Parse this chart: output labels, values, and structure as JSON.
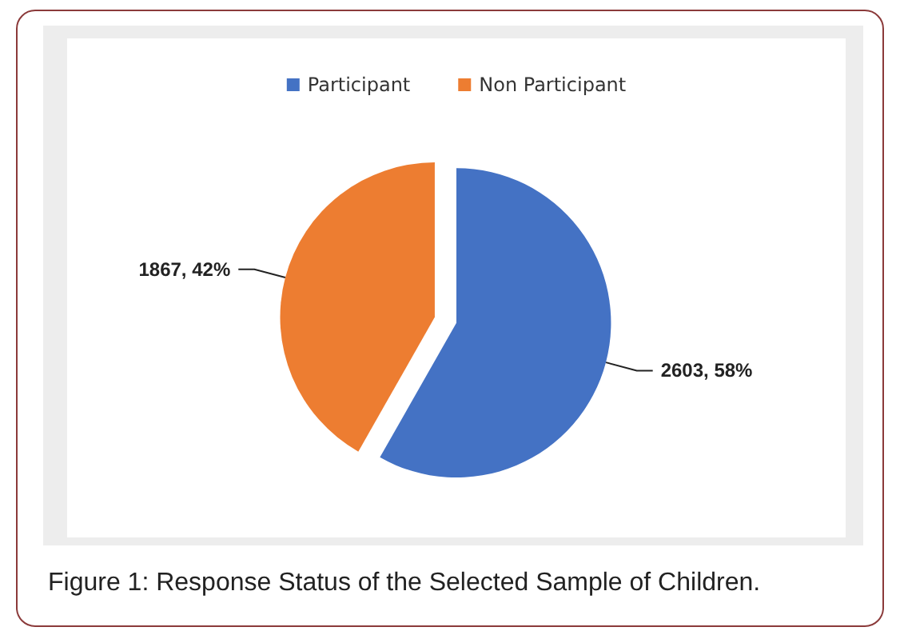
{
  "chart_data": {
    "type": "pie",
    "categories": [
      "Participant",
      "Non Participant"
    ],
    "values": [
      2603,
      1867
    ],
    "colors": [
      "#4472c4",
      "#ed7d31"
    ],
    "value_labels": [
      "2603, 58%",
      "1867, 42%"
    ],
    "legend": "top",
    "annotations": [
      "Figure 1: Response Status of the Selected Sample of Children."
    ]
  }
}
